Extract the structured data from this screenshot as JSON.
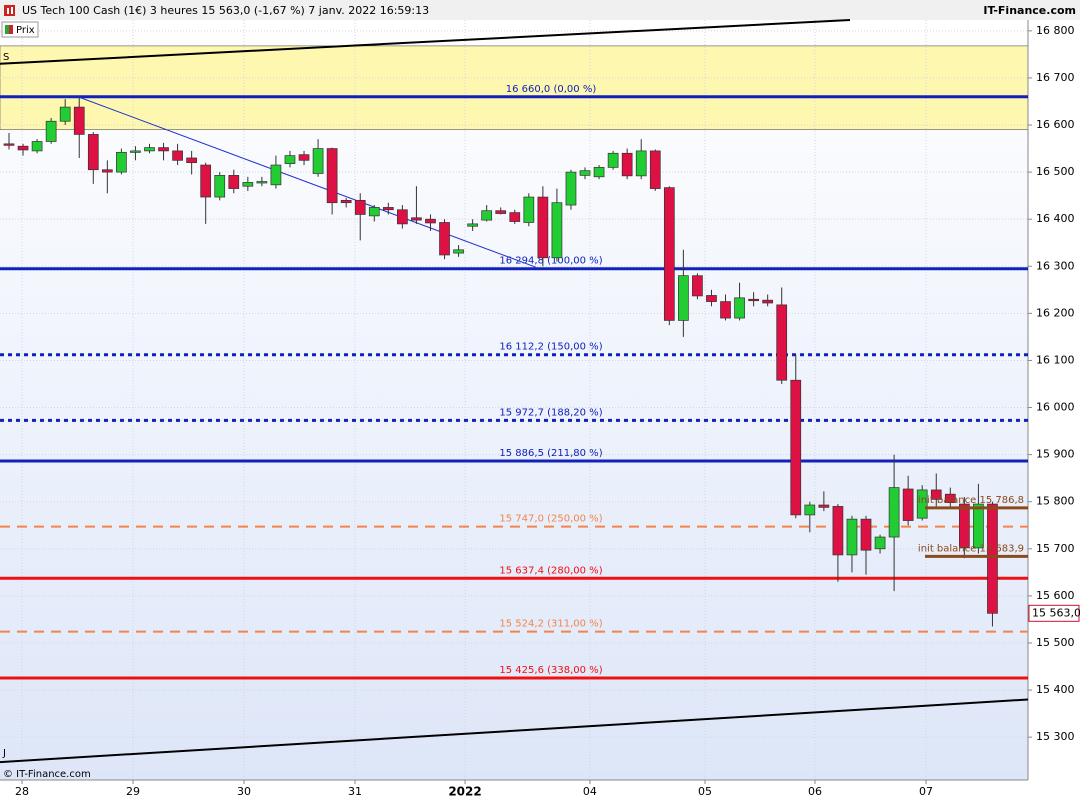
{
  "chart_data": {
    "type": "candlestick",
    "title": "US Tech 100 Cash (1€) 3 heures 15 563,0 (-1,67 %) 7 janv. 2022 16:59:13",
    "source": "IT-Finance.com",
    "legend": "Prix",
    "copyright": "© IT-Finance.com",
    "zone_label": "S",
    "corner_label": "J",
    "up_color": "#22cc33",
    "down_color": "#dd1144",
    "xlim": [
      -0.64,
      72.53
    ],
    "ylim": [
      15209,
      16823
    ],
    "xticks": [
      {
        "value": 0.93,
        "label": "28"
      },
      {
        "value": 8.83,
        "label": "29"
      },
      {
        "value": 16.73,
        "label": "30"
      },
      {
        "value": 24.63,
        "label": "31"
      },
      {
        "value": 32.46,
        "label": "2022"
      },
      {
        "value": 41.35,
        "label": "04"
      },
      {
        "value": 49.54,
        "label": "05"
      },
      {
        "value": 57.37,
        "label": "06"
      },
      {
        "value": 65.27,
        "label": "07"
      }
    ],
    "yticks": [
      {
        "value": 16800,
        "label": "16 800"
      },
      {
        "value": 16700,
        "label": "16 700"
      },
      {
        "value": 16600,
        "label": "16 600"
      },
      {
        "value": 16500,
        "label": "16 500"
      },
      {
        "value": 16400,
        "label": "16 400"
      },
      {
        "value": 16300,
        "label": "16 300"
      },
      {
        "value": 16200,
        "label": "16 200"
      },
      {
        "value": 16100,
        "label": "16 100"
      },
      {
        "value": 16000,
        "label": "16 000"
      },
      {
        "value": 15900,
        "label": "15 900"
      },
      {
        "value": 15800,
        "label": "15 800"
      },
      {
        "value": 15700,
        "label": "15 700"
      },
      {
        "value": 15600,
        "label": "15 600"
      },
      {
        "value": 15500,
        "label": "15 500"
      },
      {
        "value": 15400,
        "label": "15 400"
      },
      {
        "value": 15300,
        "label": "15 300"
      }
    ],
    "grid": true,
    "open": [
      16560,
      16555,
      16545,
      16565,
      16608,
      16638,
      16580,
      16505,
      16500,
      16543,
      16545,
      16552,
      16545,
      16530,
      16515,
      16447,
      16493,
      16470,
      16478,
      16473,
      16518,
      16537,
      16497,
      16550,
      16440,
      16440,
      16407,
      16425,
      16420,
      16403,
      16400,
      16393,
      16328,
      16385,
      16398,
      16418,
      16414,
      16393,
      16447,
      16318,
      16430,
      16493,
      16490,
      16510,
      16540,
      16492,
      16545,
      16467,
      16185,
      16280,
      16238,
      16225,
      16190,
      16230,
      16228,
      16218,
      16058,
      15772,
      15793,
      15790,
      15687,
      15763,
      15700,
      15725,
      15827,
      15765,
      15825,
      15816,
      15795,
      15702,
      15795
    ],
    "high": [
      16583,
      16560,
      16570,
      16615,
      16655,
      16660,
      16585,
      16525,
      16550,
      16555,
      16560,
      16562,
      16560,
      16545,
      16520,
      16500,
      16505,
      16490,
      16490,
      16535,
      16545,
      16545,
      16570,
      16552,
      16445,
      16455,
      16430,
      16435,
      16430,
      16470,
      16410,
      16400,
      16345,
      16400,
      16430,
      16425,
      16420,
      16455,
      16470,
      16465,
      16505,
      16510,
      16515,
      16545,
      16550,
      16570,
      16548,
      16470,
      16335,
      16285,
      16250,
      16240,
      16265,
      16245,
      16240,
      16255,
      16112,
      15800,
      15822,
      15795,
      15770,
      15770,
      15730,
      15900,
      15855,
      15835,
      15860,
      15830,
      15810,
      15838,
      15800
    ],
    "low": [
      16548,
      16535,
      16540,
      16560,
      16600,
      16530,
      16475,
      16455,
      16495,
      16525,
      16540,
      16525,
      16515,
      16495,
      16390,
      16440,
      16455,
      16460,
      16470,
      16465,
      16510,
      16515,
      16490,
      16410,
      16425,
      16355,
      16395,
      16410,
      16380,
      16390,
      16375,
      16315,
      16320,
      16375,
      16395,
      16410,
      16390,
      16385,
      16300,
      16310,
      16420,
      16485,
      16485,
      16505,
      16485,
      16485,
      16460,
      16175,
      16150,
      16230,
      16215,
      16185,
      16185,
      16215,
      16215,
      16050,
      15765,
      15735,
      15780,
      15630,
      15650,
      15645,
      15690,
      15610,
      15750,
      15760,
      15790,
      15790,
      15680,
      15690,
      15535
    ],
    "close": [
      16558,
      16547,
      16565,
      16608,
      16638,
      16580,
      16505,
      16500,
      16542,
      16545,
      16552,
      16545,
      16525,
      16520,
      16447,
      16493,
      16465,
      16478,
      16480,
      16515,
      16535,
      16525,
      16550,
      16435,
      16435,
      16410,
      16425,
      16420,
      16390,
      16398,
      16392,
      16324,
      16335,
      16390,
      16418,
      16412,
      16395,
      16447,
      16318,
      16435,
      16500,
      16503,
      16510,
      16540,
      16492,
      16545,
      16465,
      16185,
      16280,
      16237,
      16225,
      16190,
      16233,
      16227,
      16222,
      16058,
      15772,
      15793,
      15788,
      15687,
      15763,
      15697,
      15725,
      15830,
      15760,
      15825,
      15805,
      15798,
      15702,
      15795,
      15563
    ],
    "zones": [
      {
        "from": 16590,
        "to": 16768,
        "color": "#fdf7b0"
      }
    ],
    "trendlines": [
      {
        "x0": -0.64,
        "y0": 16730,
        "x1": 59.86,
        "y1": 16823,
        "color": "#000000",
        "width": 2
      },
      {
        "x0": -0.64,
        "y0": 15247,
        "x1": 72.53,
        "y1": 15380,
        "color": "#000000",
        "width": 2
      },
      {
        "x0": 4.91,
        "y0": 16660,
        "x1": 37.5,
        "y1": 16298,
        "color": "#2233cc",
        "width": 1
      }
    ],
    "levels": [
      {
        "value": 16660,
        "label": "16 660,0 (0,00 %)",
        "color": "#1122bb",
        "style": "solid"
      },
      {
        "value": 16294.8,
        "label": "16 294,8 (100,00 %)",
        "color": "#1122bb",
        "style": "solid"
      },
      {
        "value": 16112.2,
        "label": "16 112,2 (150,00 %)",
        "color": "#1122bb",
        "style": "dotted"
      },
      {
        "value": 15972.7,
        "label": "15 972,7 (188,20 %)",
        "color": "#1122bb",
        "style": "dotted"
      },
      {
        "value": 15886.5,
        "label": "15 886,5 (211,80 %)",
        "color": "#1122bb",
        "style": "solid"
      },
      {
        "value": 15747,
        "label": "15 747,0 (250,00 %)",
        "color": "#f4844c",
        "style": "dashed"
      },
      {
        "value": 15637.4,
        "label": "15 637,4 (280,00 %)",
        "color": "#ee1111",
        "style": "solid"
      },
      {
        "value": 15524.2,
        "label": "15 524,2 (311,00 %)",
        "color": "#f4844c",
        "style": "dashed"
      },
      {
        "value": 15425.6,
        "label": "15 425,6 (338,00 %)",
        "color": "#ee1111",
        "style": "solid"
      }
    ],
    "init_lines": [
      {
        "value": 15786.8,
        "label": "init balance 15 786,8",
        "x0": 65.2,
        "color": "#8b4a1a"
      },
      {
        "value": 15683.9,
        "label": "init balance 15 683,9",
        "x0": 65.2,
        "color": "#8b4a1a"
      }
    ],
    "last_price": {
      "value": 15563,
      "label": "15 563,0"
    }
  }
}
